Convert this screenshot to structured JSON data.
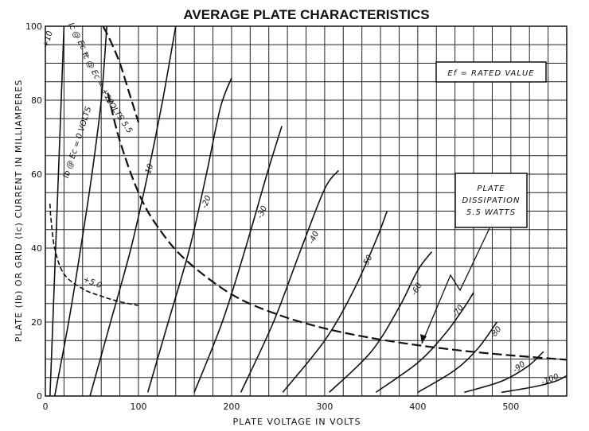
{
  "chart_data": {
    "type": "line",
    "title": "AVERAGE PLATE CHARACTERISTICS",
    "xlabel": "PLATE VOLTAGE IN VOLTS",
    "ylabel": "PLATE (Ib) OR GRID (Ic) CURRENT IN MILLIAMPERES",
    "xlim": [
      0,
      560
    ],
    "ylim": [
      0,
      100
    ],
    "x_ticks": [
      0,
      100,
      200,
      300,
      400,
      500
    ],
    "y_ticks": [
      0,
      20,
      40,
      60,
      80,
      100
    ],
    "grid": true,
    "series": [
      {
        "name": "+10",
        "label": "+10",
        "style": "solid",
        "points": [
          [
            5,
            0
          ],
          [
            8,
            20
          ],
          [
            11,
            40
          ],
          [
            14,
            60
          ],
          [
            17,
            80
          ],
          [
            20,
            100
          ]
        ]
      },
      {
        "name": "Ec = 0",
        "label": "Ib @ Ec = 0 VOLTS",
        "style": "solid",
        "points": [
          [
            10,
            0
          ],
          [
            25,
            20
          ],
          [
            38,
            40
          ],
          [
            50,
            60
          ],
          [
            60,
            80
          ],
          [
            66,
            100
          ]
        ]
      },
      {
        "name": "-10",
        "label": "-10",
        "style": "solid",
        "points": [
          [
            48,
            0
          ],
          [
            70,
            20
          ],
          [
            92,
            40
          ],
          [
            110,
            60
          ],
          [
            126,
            80
          ],
          [
            140,
            100
          ]
        ]
      },
      {
        "name": "-20",
        "label": "-20",
        "style": "solid",
        "points": [
          [
            110,
            1
          ],
          [
            132,
            20
          ],
          [
            155,
            40
          ],
          [
            173,
            60
          ],
          [
            188,
            78
          ],
          [
            200,
            86
          ]
        ]
      },
      {
        "name": "-30",
        "label": "-30",
        "style": "solid",
        "points": [
          [
            160,
            1
          ],
          [
            190,
            20
          ],
          [
            215,
            40
          ],
          [
            238,
            60
          ],
          [
            254,
            73
          ]
        ]
      },
      {
        "name": "-40",
        "label": "-40",
        "style": "solid",
        "points": [
          [
            210,
            1
          ],
          [
            245,
            20
          ],
          [
            275,
            40
          ],
          [
            300,
            56
          ],
          [
            315,
            61
          ]
        ]
      },
      {
        "name": "-50",
        "label": "-50",
        "style": "solid",
        "points": [
          [
            255,
            1
          ],
          [
            300,
            15
          ],
          [
            330,
            28
          ],
          [
            355,
            42
          ],
          [
            367,
            50
          ]
        ]
      },
      {
        "name": "-60",
        "label": "-60",
        "style": "solid",
        "points": [
          [
            305,
            1
          ],
          [
            350,
            12
          ],
          [
            380,
            24
          ],
          [
            400,
            34
          ],
          [
            415,
            39
          ]
        ]
      },
      {
        "name": "-70",
        "label": "-70",
        "style": "solid",
        "points": [
          [
            355,
            1
          ],
          [
            400,
            9
          ],
          [
            430,
            17
          ],
          [
            450,
            24
          ],
          [
            460,
            28
          ]
        ]
      },
      {
        "name": "-80",
        "label": "-80",
        "style": "solid",
        "points": [
          [
            400,
            1
          ],
          [
            440,
            7
          ],
          [
            465,
            13
          ],
          [
            485,
            20
          ]
        ]
      },
      {
        "name": "-90",
        "label": "-90",
        "style": "solid",
        "points": [
          [
            450,
            1
          ],
          [
            490,
            4
          ],
          [
            518,
            8
          ],
          [
            535,
            12
          ]
        ]
      },
      {
        "name": "-100",
        "label": "-100",
        "style": "solid",
        "points": [
          [
            490,
            1
          ],
          [
            525,
            2.5
          ],
          [
            548,
            4
          ],
          [
            560,
            5.5
          ]
        ]
      },
      {
        "name": "Ic @ Ec = +10",
        "label": "Ic @ Ec = +10",
        "style": "dashed",
        "points": [
          [
            62,
            100
          ],
          [
            70,
            96
          ],
          [
            80,
            90
          ],
          [
            90,
            82
          ],
          [
            100,
            74
          ]
        ]
      },
      {
        "name": "Ic @ Ec = +5",
        "label": "+5.0",
        "style": "dashed-small",
        "points": [
          [
            5,
            52
          ],
          [
            6,
            48
          ],
          [
            10,
            40
          ],
          [
            20,
            33
          ],
          [
            40,
            29
          ],
          [
            60,
            27
          ],
          [
            80,
            25.5
          ],
          [
            100,
            24.5
          ]
        ]
      },
      {
        "name": "Plate dissipation 5.5 W",
        "label": "VOLTS 5.5",
        "style": "dashed",
        "points": [
          [
            67,
            82
          ],
          [
            80,
            69
          ],
          [
            100,
            55
          ],
          [
            120,
            46
          ],
          [
            150,
            37
          ],
          [
            200,
            27.5
          ],
          [
            250,
            22
          ],
          [
            300,
            18.3
          ],
          [
            350,
            15.7
          ],
          [
            400,
            13.75
          ],
          [
            450,
            12.2
          ],
          [
            500,
            11
          ],
          [
            560,
            9.8
          ]
        ]
      }
    ],
    "annotations": [
      {
        "text": "Ef = RATED VALUE"
      },
      {
        "text": "PLATE DISSIPATION 5.5 WATTS"
      },
      {
        "text": "Ic @ Ec ="
      }
    ]
  }
}
